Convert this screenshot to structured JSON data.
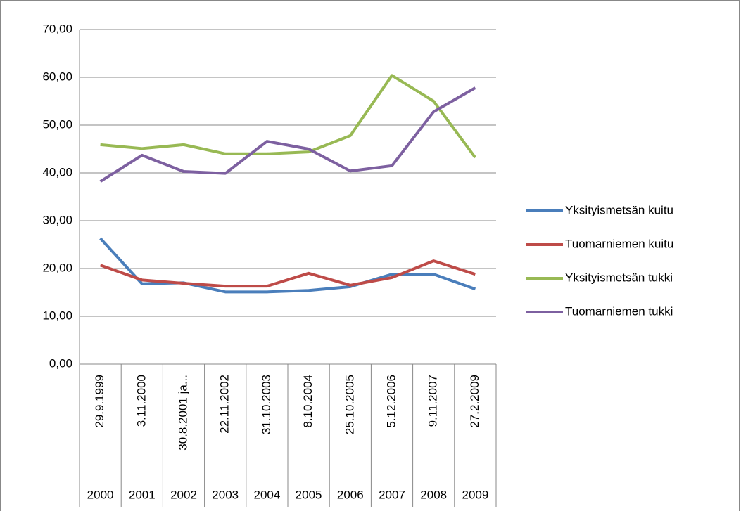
{
  "chart_data": {
    "type": "line",
    "categories": [
      "29.9.1999",
      "3.11.2000",
      "30.8.2001 ja...",
      "22.11.2002",
      "31.10.2003",
      "8.10.2004",
      "25.10.2005",
      "5.12.2006",
      "9.11.2007",
      "27.2.2009"
    ],
    "category_groups": [
      "2000",
      "2001",
      "2002",
      "2003",
      "2004",
      "2005",
      "2006",
      "2007",
      "2008",
      "2009"
    ],
    "series": [
      {
        "name": "Yksityismetsän kuitu",
        "color": "#4a7ebb",
        "values": [
          26.3,
          16.8,
          17.0,
          15.1,
          15.1,
          15.4,
          16.2,
          18.8,
          18.8,
          15.7
        ]
      },
      {
        "name": "Tuomarniemen kuitu",
        "color": "#be4b48",
        "values": [
          20.7,
          17.6,
          16.9,
          16.3,
          16.3,
          19.0,
          16.5,
          18.1,
          21.6,
          18.8
        ]
      },
      {
        "name": "Yksityismetsän tukki",
        "color": "#98b954",
        "values": [
          45.9,
          45.1,
          45.9,
          44.0,
          44.0,
          44.4,
          47.8,
          60.4,
          55.0,
          43.2
        ]
      },
      {
        "name": "Tuomarniemen tukki",
        "color": "#7d60a0",
        "values": [
          38.2,
          43.7,
          40.3,
          39.9,
          46.6,
          45.0,
          40.4,
          41.5,
          52.8,
          57.8
        ]
      }
    ],
    "ylim": [
      0,
      70
    ],
    "yticks": [
      {
        "value": 0,
        "label": "0,00"
      },
      {
        "value": 10,
        "label": "10,00"
      },
      {
        "value": 20,
        "label": "20,00"
      },
      {
        "value": 30,
        "label": "30,00"
      },
      {
        "value": 40,
        "label": "40,00"
      },
      {
        "value": 50,
        "label": "50,00"
      },
      {
        "value": 60,
        "label": "60,00"
      },
      {
        "value": 70,
        "label": "70,00"
      }
    ],
    "grid": true,
    "legend": "right"
  }
}
